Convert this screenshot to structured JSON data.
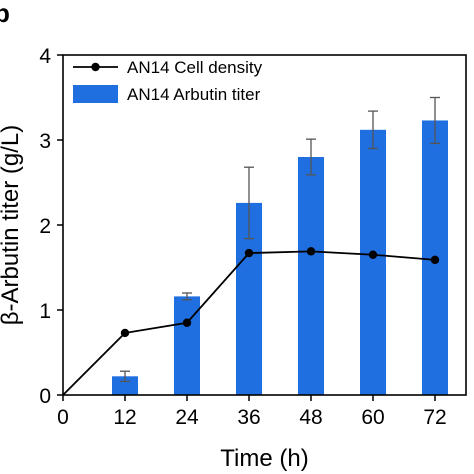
{
  "panel_label": "b",
  "chart_data": {
    "type": "bar",
    "x": [
      12,
      24,
      36,
      48,
      60,
      72
    ],
    "xlabel": "Time (h)",
    "ylabel": "β-Arbutin titer (g/L)",
    "xlim": [
      0,
      78
    ],
    "ylim": [
      0,
      4
    ],
    "xticks": [
      "0",
      "12",
      "24",
      "36",
      "48",
      "60",
      "72"
    ],
    "yticks": [
      "0",
      "1",
      "2",
      "3",
      "4"
    ],
    "grid": false,
    "legend_position": "top-left",
    "series": [
      {
        "name": "AN14 Cell density",
        "type": "line",
        "color": "#000000",
        "x": [
          0,
          12,
          24,
          36,
          48,
          60,
          72
        ],
        "values": [
          0,
          0.73,
          0.85,
          1.67,
          1.69,
          1.65,
          1.59
        ]
      },
      {
        "name": "AN14 Arbutin titer",
        "type": "bar",
        "color": "#1f6fe0",
        "x": [
          12,
          24,
          36,
          48,
          60,
          72
        ],
        "values": [
          0.22,
          1.16,
          2.26,
          2.8,
          3.12,
          3.23
        ],
        "error": [
          0.06,
          0.04,
          0.42,
          0.21,
          0.22,
          0.27
        ]
      }
    ]
  }
}
